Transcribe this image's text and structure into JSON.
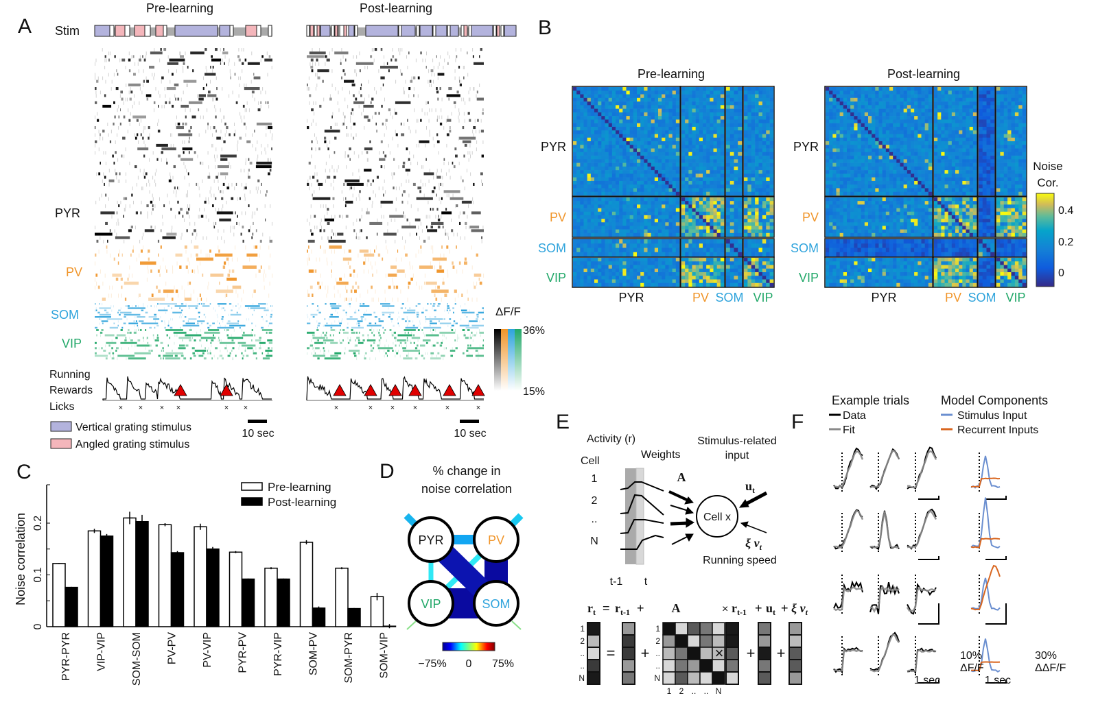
{
  "panels": {
    "A": {
      "label": "A",
      "pre_title": "Pre-learning",
      "post_title": "Post-learning",
      "stim_label": "Stim",
      "cell_types": {
        "pyr": "PYR",
        "pv": "PV",
        "som": "SOM",
        "vip": "VIP"
      },
      "behavior_labels": {
        "running": "Running",
        "rewards": "Rewards",
        "licks": "Licks"
      },
      "colorbar": {
        "title": "ΔF/F",
        "max": "36%",
        "min": "15%"
      },
      "scalebar": "10 sec",
      "legend": [
        {
          "label": "Vertical grating stimulus",
          "color": "#b3b3dd"
        },
        {
          "label": "Angled grating stimulus",
          "color": "#f4b6bb"
        }
      ],
      "colors": {
        "pyr": "#000000",
        "pv": "#f0952a",
        "som": "#2ea3dc",
        "vip": "#22a869",
        "reward": "#e00000"
      }
    },
    "B": {
      "label": "B",
      "pre_title": "Pre-learning",
      "post_title": "Post-learning",
      "row_labels": [
        "PYR",
        "PV",
        "SOM",
        "VIP"
      ],
      "col_labels": [
        "PYR",
        "PV",
        "SOM",
        "VIP"
      ],
      "colorbar": {
        "title_line1": "Noise",
        "title_line2": "Cor.",
        "ticks": [
          "0.4",
          "0.2",
          "0"
        ]
      },
      "colormap": "parula"
    },
    "D": {
      "label": "D",
      "title_line1": "% change in",
      "title_line2": "noise correlation",
      "nodes": [
        "PYR",
        "PV",
        "VIP",
        "SOM"
      ],
      "colorbar": {
        "min": "−75%",
        "mid": "0",
        "max": "75%"
      },
      "colormap": "jet"
    },
    "E": {
      "label": "E",
      "activity": "Activity (r)",
      "cell": "Cell",
      "cells": [
        "1",
        "2",
        "..",
        "N"
      ],
      "time": [
        "t-1",
        "t"
      ],
      "weights": "Weights",
      "weights_symbol": "A",
      "input_line1": "Stimulus-related",
      "input_line2": "input",
      "input_symbol": "u",
      "input_sub": "t",
      "cell_x": "Cell x",
      "running_symbol": "ξ v",
      "running_sub": "t",
      "running": "Running speed",
      "equation": {
        "lhs": "r",
        "lhs_sub": "t",
        "eq": "=",
        "prev": "r",
        "prev_sub": "t-1",
        "plus": "+",
        "A": "A",
        "times": "×",
        "u": "u",
        "u_sub": "t",
        "xi": "ξ v",
        "xi_sub": "t"
      },
      "row_index": [
        "1",
        "2",
        "..",
        "..",
        "N"
      ],
      "col_index": [
        "1",
        "2",
        "..",
        "..",
        "N"
      ]
    },
    "F": {
      "label": "F",
      "example_title": "Example trials",
      "data_label": "Data",
      "fit_label": "Fit",
      "model_title": "Model Components",
      "stim_label": "Stimulus Input",
      "rec_label": "Recurrent Inputs",
      "scale_left_y": "10%",
      "scale_left_unit": "ΔF/F",
      "scale_left_x": "1 sec",
      "scale_right_y": "30%",
      "scale_right_unit": "ΔΔF/F",
      "scale_right_x": "1 sec",
      "colors": {
        "data": "#000000",
        "fit": "#8a8a8a",
        "stim": "#6b8fd0",
        "rec": "#d9661f"
      }
    }
  },
  "chart_data": {
    "type": "bar",
    "panel": "C",
    "ylabel": "Noise correlation",
    "xlabel": "",
    "ylim": [
      0,
      0.25
    ],
    "yticks": [
      "0",
      "0.1",
      "0.2"
    ],
    "categories": [
      "PYR-PYR",
      "VIP-VIP",
      "SOM-SOM",
      "PV-PV",
      "PV-VIP",
      "PYR-PV",
      "PYR-VIP",
      "SOM-PV",
      "SOM-PYR",
      "SOM-VIP"
    ],
    "series": [
      {
        "name": "Pre-learning",
        "color": "#ffffff",
        "values": [
          0.122,
          0.185,
          0.21,
          0.197,
          0.193,
          0.144,
          0.113,
          0.163,
          0.113,
          0.058
        ],
        "errors": [
          0.001,
          0.004,
          0.012,
          0.003,
          0.006,
          0.002,
          0.002,
          0.004,
          0.002,
          0.007
        ]
      },
      {
        "name": "Post-learning",
        "color": "#000000",
        "values": [
          0.076,
          0.175,
          0.203,
          0.143,
          0.15,
          0.092,
          0.092,
          0.036,
          0.035,
          0.001
        ],
        "errors": [
          0.001,
          0.004,
          0.013,
          0.003,
          0.004,
          0.001,
          0.001,
          0.003,
          0.001,
          0.004
        ]
      }
    ],
    "legend": "top-right",
    "grid": false
  }
}
